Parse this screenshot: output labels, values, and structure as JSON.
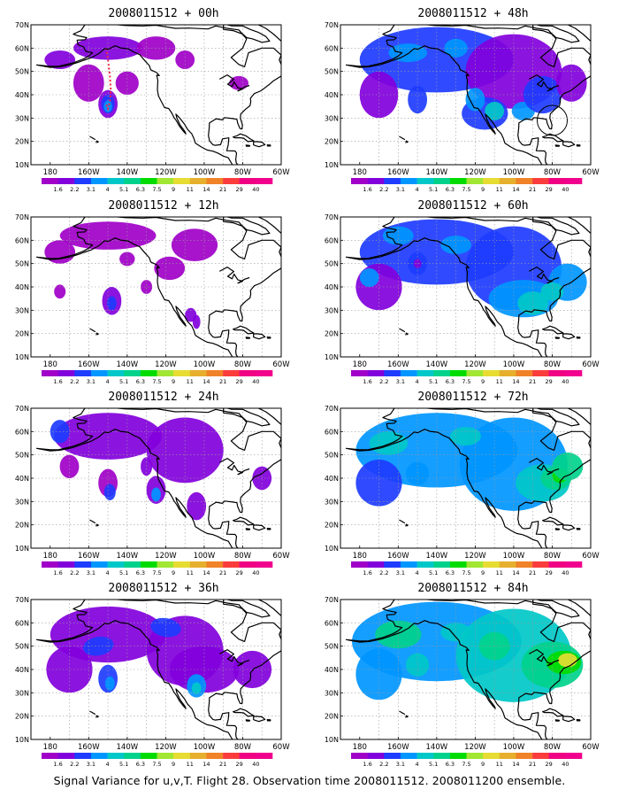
{
  "caption": "Signal Variance for u,v,T. Flight 28. Observation time 2008011512. 2008011200 ensemble.",
  "lat_labels": [
    "70N",
    "60N",
    "50N",
    "40N",
    "30N",
    "20N",
    "10N"
  ],
  "lon_labels": [
    "180",
    "160W",
    "140W",
    "120W",
    "100W",
    "80W",
    "60W"
  ],
  "colorbar": {
    "labels": [
      "1.6",
      "2.2",
      "3.1",
      "4",
      "5.1",
      "6.3",
      "7.5",
      "9",
      "11",
      "14",
      "21",
      "29",
      "40"
    ],
    "colors": [
      "#a000c8",
      "#8200dc",
      "#1e3cff",
      "#0096ff",
      "#00c8c8",
      "#00d28c",
      "#00dc00",
      "#a0e632",
      "#e6dc32",
      "#e6af2d",
      "#f08228",
      "#fa3c3c",
      "#f00082",
      "#f0008c"
    ]
  },
  "panels": [
    {
      "title": "2008011512 + 00h",
      "intensity": 0
    },
    {
      "title": "2008011512 + 12h",
      "intensity": 1
    },
    {
      "title": "2008011512 + 24h",
      "intensity": 2
    },
    {
      "title": "2008011512 + 36h",
      "intensity": 3
    },
    {
      "title": "2008011512 + 48h",
      "intensity": 4
    },
    {
      "title": "2008011512 + 60h",
      "intensity": 5
    },
    {
      "title": "2008011512 + 72h",
      "intensity": 6
    },
    {
      "title": "2008011512 + 84h",
      "intensity": 7
    }
  ]
}
